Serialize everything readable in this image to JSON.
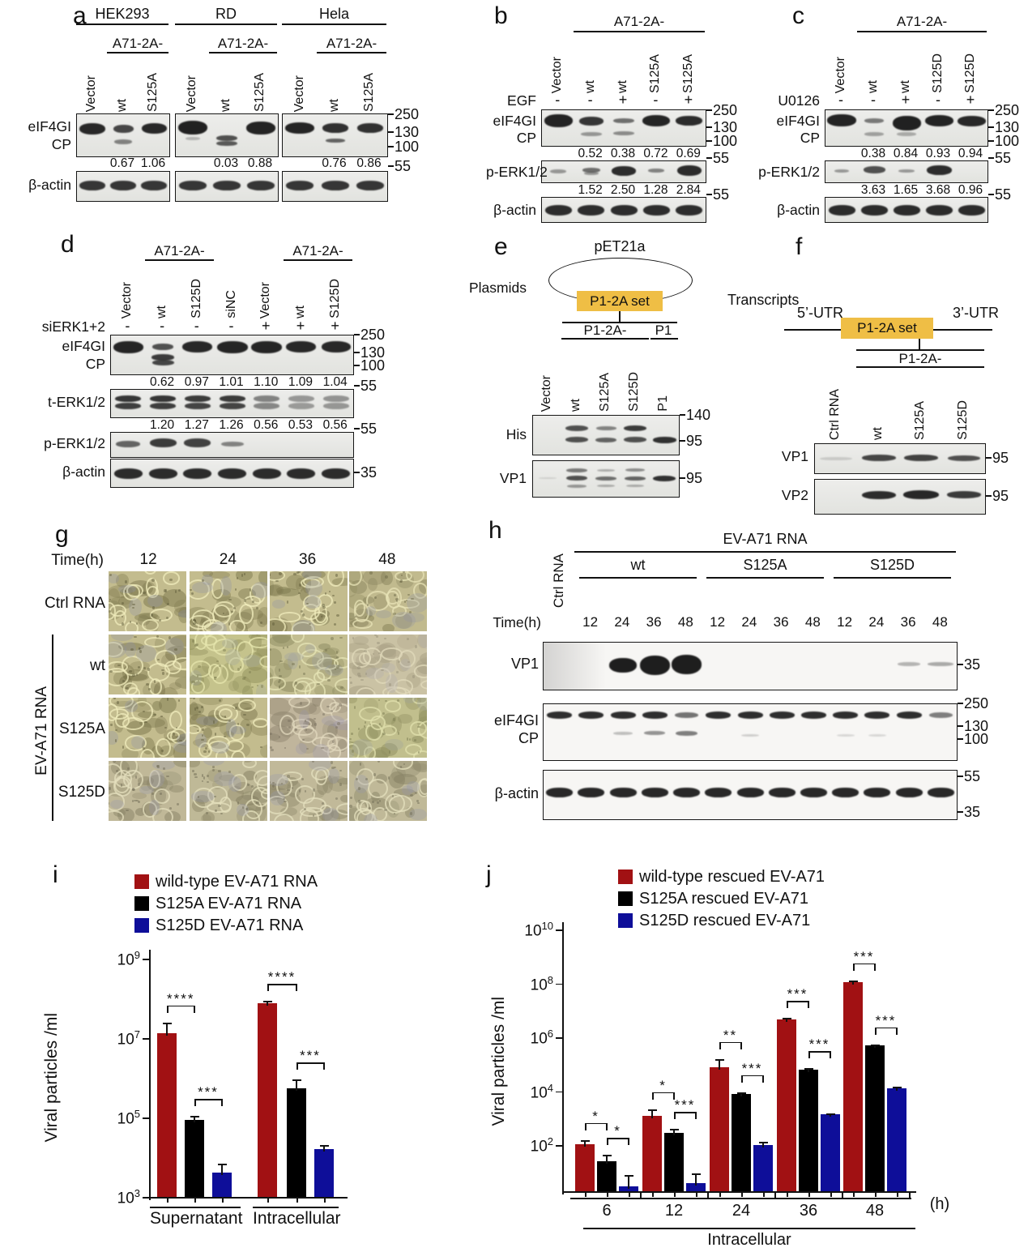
{
  "colors": {
    "wt_red": "#A11113",
    "s125a_black": "#000000",
    "s125d_blue": "#0E0E99",
    "insert_orange": "#EFBE45"
  },
  "panel_a": {
    "letter": "a",
    "cell_lines": [
      "HEK293",
      "RD",
      "Hela"
    ],
    "construct": "A71-2A-",
    "lanes": [
      "Vector",
      "wt",
      "S125A"
    ],
    "rows": [
      "eIF4GI",
      "CP",
      "β-actin"
    ],
    "markers": [
      "250",
      "130",
      "100",
      "55"
    ],
    "ratios": [
      [
        "0.67",
        "1.06"
      ],
      [
        "0.03",
        "0.88"
      ],
      [
        "0.76",
        "0.86"
      ]
    ]
  },
  "panel_b": {
    "letter": "b",
    "construct": "A71-2A-",
    "lanes": [
      "Vector",
      "wt",
      "wt",
      "S125A",
      "S125A"
    ],
    "treatment": {
      "label": "EGF",
      "signs": [
        "-",
        "-",
        "+",
        "-",
        "+"
      ]
    },
    "rows": [
      "eIF4GI",
      "CP",
      "p-ERK1/2",
      "β-actin"
    ],
    "markers": [
      "250",
      "130",
      "100",
      "55",
      "55"
    ],
    "numbers1": [
      "0.52",
      "0.38",
      "0.72",
      "0.69"
    ],
    "numbers2": [
      "1.52",
      "2.50",
      "1.28",
      "2.84"
    ]
  },
  "panel_c": {
    "letter": "c",
    "construct": "A71-2A-",
    "lanes": [
      "Vector",
      "wt",
      "wt",
      "S125D",
      "S125D"
    ],
    "treatment": {
      "label": "U0126",
      "signs": [
        "-",
        "-",
        "+",
        "-",
        "+"
      ]
    },
    "rows": [
      "eIF4GI",
      "CP",
      "p-ERK1/2",
      "β-actin"
    ],
    "markers": [
      "250",
      "130",
      "100",
      "55",
      "55"
    ],
    "numbers1": [
      "0.38",
      "0.84",
      "0.93",
      "0.94"
    ],
    "numbers2": [
      "3.63",
      "1.65",
      "3.68",
      "0.96"
    ]
  },
  "panel_d": {
    "letter": "d",
    "construct": "A71-2A-",
    "lanes": [
      "Vector",
      "wt",
      "S125D",
      "siNC",
      "Vector",
      "wt",
      "S125D"
    ],
    "treatment": {
      "label": "siERK1+2",
      "signs": [
        "-",
        "-",
        "-",
        "-",
        "+",
        "+",
        "+"
      ]
    },
    "rows": [
      "eIF4GI",
      "CP",
      "t-ERK1/2",
      "p-ERK1/2",
      "β-actin"
    ],
    "markers": [
      "250",
      "130",
      "100",
      "55",
      "55",
      "35"
    ],
    "numbers1": [
      "0.62",
      "0.97",
      "1.01",
      "1.10",
      "1.09",
      "1.04"
    ],
    "numbers2": [
      "1.20",
      "1.27",
      "1.26",
      "0.56",
      "0.53",
      "0.56"
    ]
  },
  "panel_e": {
    "letter": "e",
    "diagram_label": "Plasmids",
    "plasmid": "pET21a",
    "insert": "P1-2A set",
    "group_headers": [
      "P1-2A-",
      "P1"
    ],
    "lanes": [
      "Vector",
      "wt",
      "S125A",
      "S125D",
      "P1"
    ],
    "rows": [
      "His",
      "VP1"
    ],
    "markers": [
      "140",
      "95",
      "95"
    ]
  },
  "panel_f": {
    "letter": "f",
    "diagram_label": "Transcripts",
    "utr5": "5’-UTR",
    "utr3": "3’-UTR",
    "insert": "P1-2A set",
    "header": "P1-2A-",
    "lanes": [
      "Ctrl RNA",
      "wt",
      "S125A",
      "S125D"
    ],
    "rows": [
      "VP1",
      "VP2"
    ],
    "markers": [
      "95",
      "95"
    ]
  },
  "panel_g": {
    "letter": "g",
    "time_label": "Time(h)",
    "times": [
      "12",
      "24",
      "36",
      "48"
    ],
    "row_labels": [
      "Ctrl RNA",
      "wt",
      "S125A",
      "S125D"
    ],
    "side_label": "EV-A71 RNA"
  },
  "panel_h": {
    "letter": "h",
    "header": "EV-A71 RNA",
    "ctrl": "Ctrl RNA",
    "groups": [
      "wt",
      "S125A",
      "S125D"
    ],
    "time_label": "Time(h)",
    "times": [
      "12",
      "24",
      "36",
      "48"
    ],
    "rows": [
      "VP1",
      "eIF4GI",
      "CP",
      "β-actin"
    ],
    "markers": [
      "35",
      "250",
      "130",
      "100",
      "55",
      "35"
    ]
  },
  "chart_data": [
    {
      "panel": "i",
      "type": "bar",
      "scale": "log",
      "grid": false,
      "legend_position": "top",
      "ylabel": "Viral particles /ml",
      "ylim": [
        1000,
        1000000000
      ],
      "yticks": [
        {
          "exp": "9",
          "log": 9
        },
        {
          "exp": "7",
          "log": 7
        },
        {
          "exp": "5",
          "log": 5
        },
        {
          "exp": "3",
          "log": 3
        }
      ],
      "categories": [
        "Supernatant",
        "Intracellular"
      ],
      "series": [
        {
          "name": "wild-type EV-A71 RNA",
          "color": "#A11113",
          "values": [
            13000000.0,
            75000000.0
          ],
          "err_upper": [
            25000000.0,
            85000000.0
          ]
        },
        {
          "name": "S125A EV-A71 RNA",
          "color": "#000000",
          "values": [
            85000.0,
            550000.0
          ],
          "err_upper": [
            110000.0,
            900000.0
          ]
        },
        {
          "name": "S125D EV-A71 RNA",
          "color": "#0E0E99",
          "values": [
            4000.0,
            16000.0
          ],
          "err_upper": [
            7000.0,
            20000.0
          ]
        }
      ],
      "significance": [
        {
          "group": 0,
          "pair": [
            0,
            1
          ],
          "label": "****"
        },
        {
          "group": 0,
          "pair": [
            1,
            2
          ],
          "label": "***"
        },
        {
          "group": 1,
          "pair": [
            0,
            1
          ],
          "label": "****"
        },
        {
          "group": 1,
          "pair": [
            1,
            2
          ],
          "label": "***"
        }
      ]
    },
    {
      "panel": "j",
      "type": "bar",
      "scale": "log",
      "grid": false,
      "legend_position": "top",
      "ylabel": "Viral particles /ml",
      "xlabel": "Intracellular",
      "x_unit": "(h)",
      "ylim": [
        1,
        10000000000
      ],
      "yticks": [
        {
          "exp": "10",
          "log": 10
        },
        {
          "exp": "8",
          "log": 8
        },
        {
          "exp": "6",
          "log": 6
        },
        {
          "exp": "4",
          "log": 4
        },
        {
          "exp": "2",
          "log": 2
        }
      ],
      "categories": [
        "6",
        "12",
        "24",
        "36",
        "48"
      ],
      "series": [
        {
          "name": "wild-type rescued EV-A71",
          "color": "#A11113",
          "values": [
            110,
            1200,
            80000.0,
            4700000.0,
            110000000.0
          ],
          "err_upper": [
            160,
            2200,
            160000.0,
            5300000.0,
            130000000.0
          ]
        },
        {
          "name": "S125A rescued EV-A71",
          "color": "#000000",
          "values": [
            25,
            290,
            8000.0,
            65000.0,
            500000.0
          ],
          "err_upper": [
            45,
            400,
            9500.0,
            72000.0,
            550000.0
          ]
        },
        {
          "name": "S125D rescued EV-A71",
          "color": "#0E0E99",
          "values": [
            3,
            4,
            100,
            1400,
            13000.0
          ],
          "err_upper": [
            8,
            9,
            135,
            1550,
            14500.0
          ]
        }
      ],
      "significance": [
        {
          "group": 0,
          "pair": [
            0,
            1
          ],
          "label": "*"
        },
        {
          "group": 0,
          "pair": [
            1,
            2
          ],
          "label": "*"
        },
        {
          "group": 1,
          "pair": [
            0,
            1
          ],
          "label": "*"
        },
        {
          "group": 1,
          "pair": [
            1,
            2
          ],
          "label": "***"
        },
        {
          "group": 2,
          "pair": [
            0,
            1
          ],
          "label": "**"
        },
        {
          "group": 2,
          "pair": [
            1,
            2
          ],
          "label": "***"
        },
        {
          "group": 3,
          "pair": [
            0,
            1
          ],
          "label": "***"
        },
        {
          "group": 3,
          "pair": [
            1,
            2
          ],
          "label": "***"
        },
        {
          "group": 4,
          "pair": [
            0,
            1
          ],
          "label": "***"
        },
        {
          "group": 4,
          "pair": [
            1,
            2
          ],
          "label": "***"
        }
      ]
    }
  ]
}
